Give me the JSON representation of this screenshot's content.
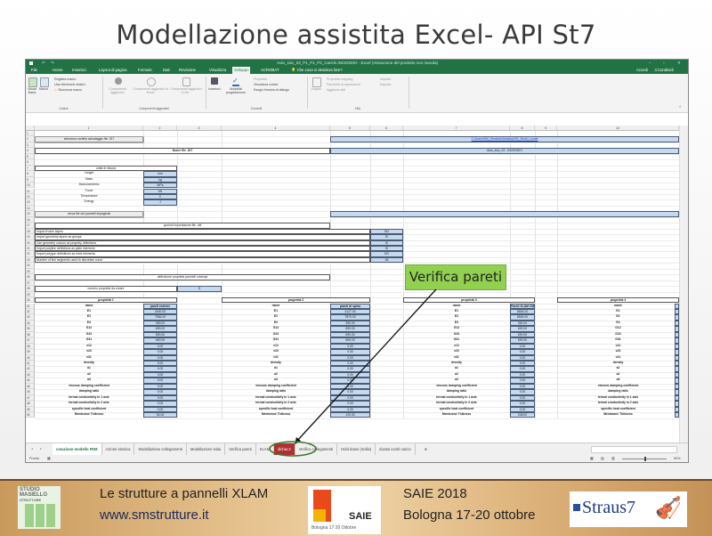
{
  "slide": {
    "title": "Modellazione assistita Excel- API St7",
    "callout": "Verifica pareti",
    "footer": {
      "project": "Le strutture a pannelli XLAM",
      "website": "www.smstrutture.it",
      "event": "SAIE 2018",
      "event_place_date": "Bologna 17-20 ottobre",
      "logo_studio": "STUDIO MASIELLO STRUTTURE",
      "logo_saie": "SAIE",
      "logo_saie_sub": "Bologna 17 20 Ottobre",
      "logo_straus": "Straus7"
    },
    "colors": {
      "excel_green": "#217346",
      "callout_green": "#92d050",
      "cell_blue": "#c5d9f1",
      "red_tab": "#b03030"
    }
  },
  "excel": {
    "window_title": "Aulo_sisc_03_P1_P1_P2_Carichi.INCENDIO - Excel (Attivazione del prodotto non riuscita)",
    "quick_access": [
      "save-icon",
      "undo-icon",
      "redo-icon"
    ],
    "ribbon_tabs": [
      "File",
      "Home",
      "Inserisci",
      "Layout di pagina",
      "Formule",
      "Dati",
      "Revisione",
      "Visualizza",
      "Sviluppo",
      "ACROBAT"
    ],
    "active_tab": "Sviluppo",
    "tell_me": "Che cosa si desidera fare?",
    "accedi": "Accedi",
    "condividi": "Condividi",
    "ribbon": {
      "codice": {
        "label": "Codice",
        "visual_basic": "Visual Basic",
        "macro": "Macro",
        "registra": "Registra macro",
        "riferimenti": "Usa riferimenti relativi",
        "sicurezza": "Sicurezza macro"
      },
      "componenti": {
        "label": "Componenti aggiuntivi",
        "b1": "Componenti aggiuntivi",
        "b2": "Componenti aggiuntivi di Excel",
        "b3": "Componenti aggiuntivi COM..."
      },
      "controlli": {
        "label": "Controlli",
        "inserisci": "Inserisci",
        "modalita": "Modalità progettazione",
        "proprieta": "Proprietà",
        "visualizza": "Visualizza codice",
        "esegui": "Esegui finestra di dialogo"
      },
      "xml": {
        "label": "XML",
        "origine": "Origine",
        "mapping": "Proprietà mapping",
        "pacchetti": "Pacchetti di espansione",
        "aggiorna": "Aggiorna dati",
        "importa": "Importa",
        "esporta": "Esporta"
      }
    },
    "column_headers": [
      "1",
      "2",
      "3",
      "4",
      "5",
      "6",
      "7",
      "8",
      "9",
      "10"
    ],
    "cells": [
      {
        "r": 2,
        "c1": 1,
        "c2": 1,
        "text": "seleziona cartella salvataggio file .St7",
        "style": "btn"
      },
      {
        "r": 2,
        "c1": 5,
        "c2": 10,
        "text": "C:\\Users\\SM_Strutture\\Desktop\\XB_Strutt_Locale",
        "style": "blue link"
      },
      {
        "r": 4,
        "c1": 1,
        "c2": 4,
        "text": "Nome file .St7",
        "style": "box bold"
      },
      {
        "r": 4,
        "c1": 5,
        "c2": 10,
        "text": "Aulo_sisc_03 - INCENDIO",
        "style": "blue"
      },
      {
        "r": 7,
        "c1": 1,
        "c2": 2,
        "text": "unità di misura",
        "style": "box"
      },
      {
        "r": 8,
        "c1": 1,
        "c2": 1,
        "text": "Lenght",
        "style": "plain"
      },
      {
        "r": 8,
        "c1": 2,
        "c2": 2,
        "text": "mm",
        "style": "blue"
      },
      {
        "r": 9,
        "c1": 1,
        "c2": 1,
        "text": "Mass",
        "style": "plain"
      },
      {
        "r": 9,
        "c1": 2,
        "c2": 2,
        "text": "kg",
        "style": "blue"
      },
      {
        "r": 10,
        "c1": 1,
        "c2": 1,
        "text": "Modulus/stress",
        "style": "plain"
      },
      {
        "r": 10,
        "c1": 2,
        "c2": 2,
        "text": "MPa",
        "style": "blue"
      },
      {
        "r": 11,
        "c1": 1,
        "c2": 1,
        "text": "Force",
        "style": "plain"
      },
      {
        "r": 11,
        "c1": 2,
        "c2": 2,
        "text": "kN",
        "style": "blue"
      },
      {
        "r": 12,
        "c1": 1,
        "c2": 1,
        "text": "Temperature",
        "style": "plain"
      },
      {
        "r": 12,
        "c1": 2,
        "c2": 2,
        "text": "C",
        "style": "blue"
      },
      {
        "r": 13,
        "c1": 1,
        "c2": 1,
        "text": "Energy",
        "style": "plain"
      },
      {
        "r": 13,
        "c1": 2,
        "c2": 2,
        "text": "J",
        "style": "blue"
      },
      {
        "r": 15,
        "c1": 1,
        "c2": 1,
        "text": "cerca file dxf pannelli impaginati",
        "style": "btn"
      },
      {
        "r": 15,
        "c1": 5,
        "c2": 10,
        "text": "",
        "style": "blue"
      },
      {
        "r": 17,
        "c1": 1,
        "c2": 4,
        "text": "opzioni importazione file .dxf",
        "style": "box"
      },
      {
        "r": 18,
        "c1": 1,
        "c2": 5,
        "text": "Import frozen layers",
        "style": "box left"
      },
      {
        "r": 18,
        "c1": 6,
        "c2": 6,
        "text": "NO",
        "style": "blue"
      },
      {
        "r": 19,
        "c1": 1,
        "c2": 5,
        "text": "Import geometry layers as groups",
        "style": "box left"
      },
      {
        "r": 19,
        "c1": 6,
        "c2": 6,
        "text": "SI",
        "style": "blue"
      },
      {
        "r": 20,
        "c1": 1,
        "c2": 5,
        "text": "Use geometry colours as property definitions",
        "style": "box left"
      },
      {
        "r": 20,
        "c1": 6,
        "c2": 6,
        "text": "SI",
        "style": "blue"
      },
      {
        "r": 21,
        "c1": 1,
        "c2": 5,
        "text": "Import polyline definitions as plate elements",
        "style": "box left"
      },
      {
        "r": 21,
        "c1": 6,
        "c2": 6,
        "text": "SI",
        "style": "blue"
      },
      {
        "r": 22,
        "c1": 1,
        "c2": 5,
        "text": "Import polygon definitions as brick elements",
        "style": "box left"
      },
      {
        "r": 22,
        "c1": 6,
        "c2": 6,
        "text": "NO",
        "style": "blue"
      },
      {
        "r": 23,
        "c1": 1,
        "c2": 5,
        "text": "Number of line segments used to discretise curve",
        "style": "box left"
      },
      {
        "r": 23,
        "c1": 6,
        "c2": 6,
        "text": "48",
        "style": "blue"
      },
      {
        "r": 26,
        "c1": 1,
        "c2": 4,
        "text": "definizione proprietà pannelli ortotropi",
        "style": "box"
      },
      {
        "r": 28,
        "c1": 1,
        "c2": 2,
        "text": "numero proprietà da creare",
        "style": "box"
      },
      {
        "r": 28,
        "c1": 3,
        "c2": 3,
        "text": "8",
        "style": "blue"
      }
    ],
    "property_names": [
      "E1",
      "E2",
      "E3",
      "G12",
      "G23",
      "G31",
      "v12",
      "v23",
      "v31",
      "density",
      "a1",
      "a2",
      "a3",
      "viscous damping coefficient",
      "damping ratio",
      "termal conductivity in 1 axis",
      "termal conductivity in 2 axis",
      "specific heat coefficient",
      "Membrane Thikness"
    ],
    "name_header": "name",
    "properties": [
      {
        "title": "proprietà 1",
        "value_header": "pareti esterne",
        "values": [
          "4400.00",
          "7556.00",
          "350.00",
          "690.00",
          "690.00",
          "690.00",
          "0.00",
          "0.00",
          "0.00",
          "0.00",
          "0.00",
          "0.00",
          "0.00",
          "0.00",
          "0.00",
          "0.00",
          "0.00",
          "0.00",
          "94.00"
        ]
      },
      {
        "title": "proprietà 2",
        "value_header": "pareti di spina",
        "values": [
          "4127.00",
          "7870.00",
          "390.00",
          "690.00",
          "690.00",
          "690.00",
          "0.00",
          "0.00",
          "0.00",
          "0.00",
          "0.00",
          "0.00",
          "0.00",
          "0.00",
          "0.00",
          "0.00",
          "0.00",
          "0.00",
          "120.00"
        ]
      },
      {
        "title": "proprietà 3",
        "value_header": "Pareti XLAM 208",
        "values": [
          "8548.00",
          "8548.00",
          "350.00",
          "690.00",
          "690.00",
          "690.00",
          "0.00",
          "0.00",
          "0.00",
          "0.00",
          "0.00",
          "0.00",
          "0.00",
          "0.00",
          "0.00",
          "0.00",
          "0.00",
          "0.00",
          "208.00"
        ]
      },
      {
        "title": "proprietà 4",
        "value_header": "",
        "values": []
      }
    ],
    "sheet_tabs": [
      {
        "label": "creazione modello FEM",
        "state": "active"
      },
      {
        "label": "Azione sismica",
        "state": ""
      },
      {
        "label": "Modellazione collegamenti",
        "state": ""
      },
      {
        "label": "Modellazione solai",
        "state": ""
      },
      {
        "label": "Verifica pareti",
        "state": "highlighted"
      },
      {
        "label": "XLAM",
        "state": ""
      },
      {
        "label": "dichar.2",
        "state": "red"
      },
      {
        "label": "Verifica collegamenti",
        "state": ""
      },
      {
        "label": "Hold-down (molla)",
        "state": ""
      },
      {
        "label": "durata comb carico",
        "state": ""
      }
    ],
    "add_sheet": "⊕",
    "status": "Pronto",
    "zoom_level": "90%"
  }
}
